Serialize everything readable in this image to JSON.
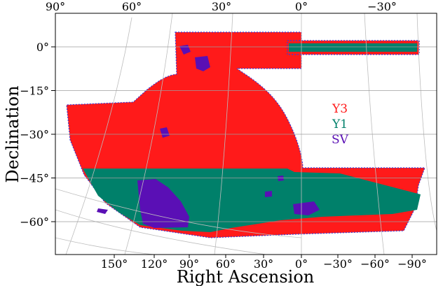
{
  "chart_data": {
    "type": "map",
    "xlabel": "Right Ascension",
    "ylabel": "Declination",
    "top_ticks": [
      "90°",
      "60°",
      "30°",
      "0°",
      "−30°"
    ],
    "bottom_ticks": [
      "150°",
      "120°",
      "90°",
      "60°",
      "30°",
      "0°",
      "−30°",
      "−60°",
      "−90°"
    ],
    "y_ticks": [
      {
        "label": "0°",
        "value": 0
      },
      {
        "label": "−15°",
        "value": -15
      },
      {
        "label": "−30°",
        "value": -30
      },
      {
        "label": "−45°",
        "value": -45
      },
      {
        "label": "−60°",
        "value": -60
      }
    ],
    "grid": true,
    "legend_position": "right",
    "series": [
      {
        "name": "Y3",
        "color": "#ff1a1a"
      },
      {
        "name": "Y1",
        "color": "#00806a"
      },
      {
        "name": "SV",
        "color": "#5a0fb5"
      }
    ]
  }
}
